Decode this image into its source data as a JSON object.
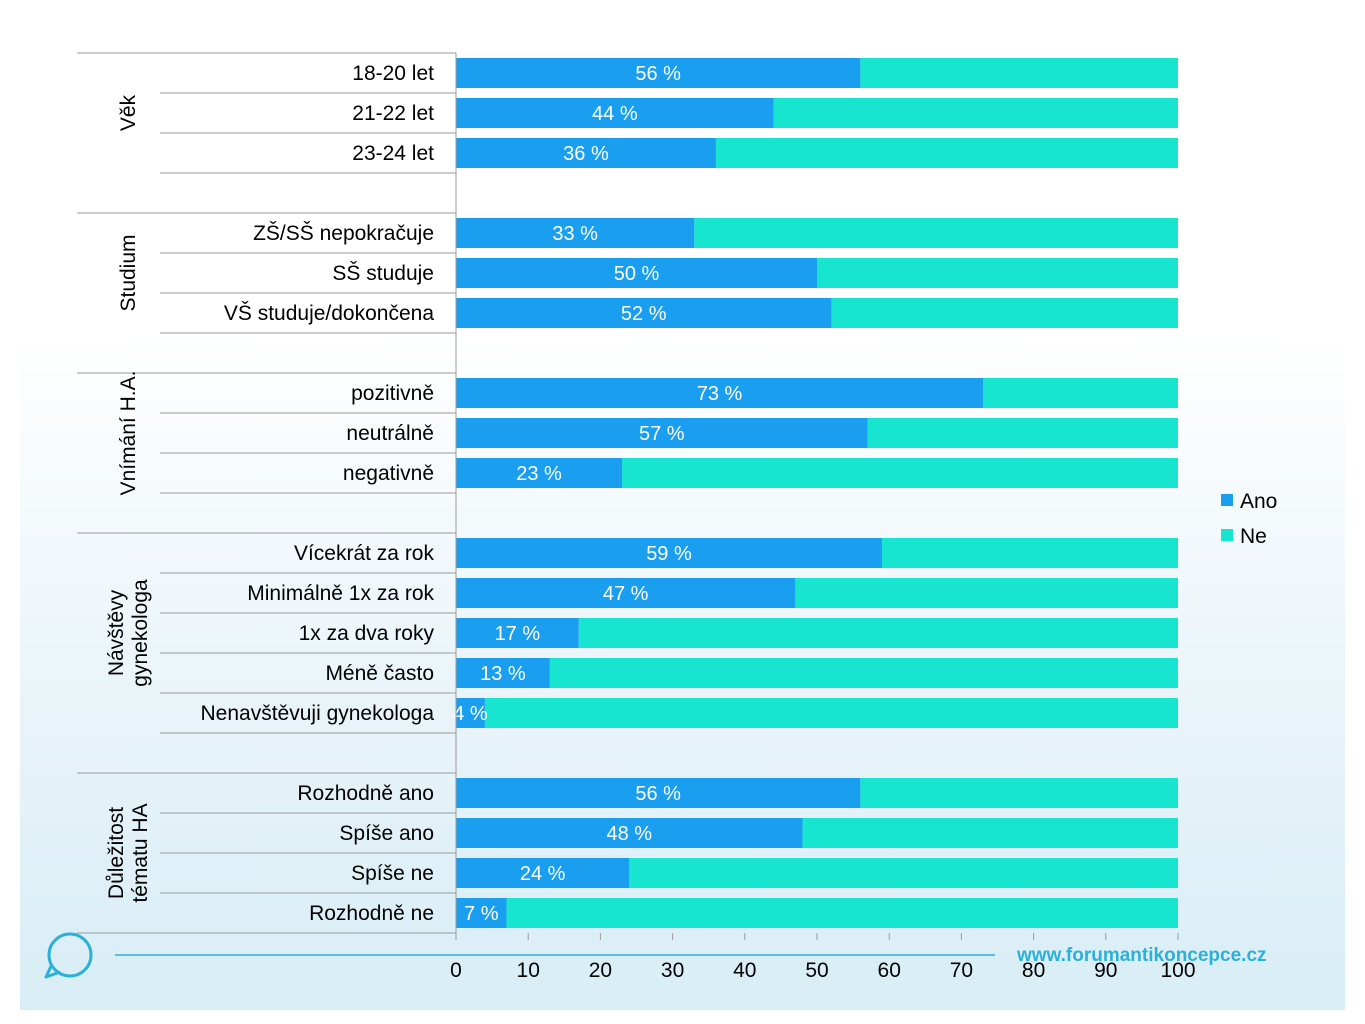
{
  "chart_data": {
    "type": "bar",
    "stacked": true,
    "orientation": "horizontal",
    "xlim": [
      0,
      100
    ],
    "xticks": [
      0,
      10,
      20,
      30,
      40,
      50,
      60,
      70,
      80,
      90,
      100
    ],
    "legend_position": "right",
    "series": [
      {
        "name": "Ano",
        "color": "#1a9ef0"
      },
      {
        "name": "Ne",
        "color": "#17e5cf"
      }
    ],
    "groups": [
      {
        "name": "Věk",
        "rows": [
          {
            "label": "18-20 let",
            "ano": 56,
            "ano_label": "56 %"
          },
          {
            "label": "21-22 let",
            "ano": 44,
            "ano_label": "44 %"
          },
          {
            "label": "23-24 let",
            "ano": 36,
            "ano_label": "36 %"
          }
        ]
      },
      {
        "name": "Studium",
        "rows": [
          {
            "label": "ZŠ/SŠ nepokračuje",
            "ano": 33,
            "ano_label": "33 %"
          },
          {
            "label": "SŠ studuje",
            "ano": 50,
            "ano_label": "50 %"
          },
          {
            "label": "VŠ studuje/dokončena",
            "ano": 52,
            "ano_label": "52 %"
          }
        ]
      },
      {
        "name": "Vnímání H.A.",
        "rows": [
          {
            "label": "pozitivně",
            "ano": 73,
            "ano_label": "73 %"
          },
          {
            "label": "neutrálně",
            "ano": 57,
            "ano_label": "57 %"
          },
          {
            "label": "negativně",
            "ano": 23,
            "ano_label": "23 %"
          }
        ]
      },
      {
        "name_lines": [
          "Návštěvy",
          "gynekologa"
        ],
        "rows": [
          {
            "label": "Vícekrát za rok",
            "ano": 59,
            "ano_label": "59 %"
          },
          {
            "label": "Minimálně 1x za rok",
            "ano": 47,
            "ano_label": "47 %"
          },
          {
            "label": "1x za dva roky",
            "ano": 17,
            "ano_label": "17 %"
          },
          {
            "label": "Méně často",
            "ano": 13,
            "ano_label": "13 %"
          },
          {
            "label": "Nenavštěvuji gynekologa",
            "ano": 4,
            "ano_label": "4 %"
          }
        ]
      },
      {
        "name_lines": [
          "Důležitost",
          "tématu HA"
        ],
        "rows": [
          {
            "label": "Rozhodně ano",
            "ano": 56,
            "ano_label": "56 %"
          },
          {
            "label": "Spíše ano",
            "ano": 48,
            "ano_label": "48 %"
          },
          {
            "label": "Spíše ne",
            "ano": 24,
            "ano_label": "24 %"
          },
          {
            "label": "Rozhodně ne",
            "ano": 7,
            "ano_label": "7 %"
          }
        ]
      }
    ]
  },
  "footer": {
    "url": "www.forumantikoncepce.cz",
    "accent": "#2bb0da",
    "logo_icon": "speech-bubble-icon"
  }
}
